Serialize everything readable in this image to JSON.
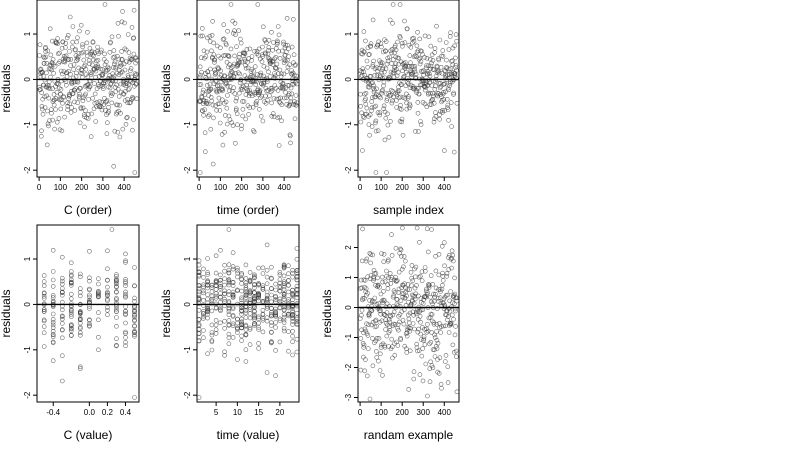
{
  "figure": {
    "panel_count": 6
  },
  "chart_data": [
    {
      "type": "scatter",
      "xlabel": "C (order)",
      "ylabel": "residuals",
      "xlim": [
        -10,
        470
      ],
      "ylim": [
        -2.15,
        1.75
      ],
      "xticks": [
        0,
        100,
        200,
        300,
        400
      ],
      "yticks": [
        -2,
        -1,
        0,
        1
      ],
      "hline": 0,
      "grid": false,
      "n_points": 460,
      "x": "1..460 (observation order)",
      "notable_points": [
        {
          "x": 10,
          "y": -1.25
        },
        {
          "x": 450,
          "y": -2.05
        },
        {
          "x": 310,
          "y": 1.65
        }
      ]
    },
    {
      "type": "scatter",
      "xlabel": "time (order)",
      "ylabel": "residuals",
      "xlim": [
        -10,
        470
      ],
      "ylim": [
        -2.15,
        1.75
      ],
      "xticks": [
        0,
        100,
        200,
        300,
        400
      ],
      "yticks": [
        -2,
        -1,
        0,
        1
      ],
      "hline": 0,
      "grid": false,
      "n_points": 460,
      "notable_points": [
        {
          "x": 5,
          "y": -2.05
        },
        {
          "x": 150,
          "y": 1.65
        }
      ]
    },
    {
      "type": "scatter",
      "xlabel": "sample index",
      "ylabel": "residuals",
      "xlim": [
        -10,
        470
      ],
      "ylim": [
        -2.15,
        1.75
      ],
      "xticks": [
        0,
        100,
        200,
        300,
        400
      ],
      "yticks": [
        -2,
        -1,
        0,
        1
      ],
      "hline": 0,
      "grid": false,
      "n_points": 460,
      "notable_points": [
        {
          "x": 75,
          "y": -2.05
        },
        {
          "x": 190,
          "y": 1.65
        }
      ]
    },
    {
      "type": "scatter",
      "xlabel": "C (value)",
      "ylabel": "residuals",
      "xlim": [
        -0.58,
        0.55
      ],
      "ylim": [
        -2.15,
        1.75
      ],
      "xticks": [
        -0.4,
        0.0,
        0.2,
        0.4
      ],
      "xtick_labels": [
        "-0.4",
        "0.0",
        "0.2",
        "0.4"
      ],
      "yticks": [
        -2,
        -1,
        0,
        1
      ],
      "hline": 0,
      "grid": false,
      "x_values": [
        -0.5,
        -0.4,
        -0.3,
        -0.2,
        -0.1,
        0.0,
        0.1,
        0.2,
        0.3,
        0.4,
        0.5
      ],
      "notable_points": [
        {
          "x": 0.5,
          "y": -2.05
        },
        {
          "x": 0.25,
          "y": 1.65
        }
      ]
    },
    {
      "type": "scatter",
      "xlabel": "time (value)",
      "ylabel": "residuals",
      "xlim": [
        0.5,
        24.5
      ],
      "ylim": [
        -2.15,
        1.75
      ],
      "xticks": [
        5,
        10,
        15,
        20
      ],
      "yticks": [
        -2,
        -1,
        0,
        1
      ],
      "hline": 0,
      "grid": false,
      "x_values": [
        1,
        2,
        3,
        4,
        5,
        6,
        7,
        8,
        9,
        10,
        11,
        12,
        13,
        14,
        15,
        16,
        17,
        18,
        19,
        20,
        21,
        22,
        23,
        24
      ],
      "notable_points": [
        {
          "x": 1,
          "y": -2.05
        },
        {
          "x": 8,
          "y": 1.65
        }
      ]
    },
    {
      "type": "scatter",
      "xlabel": "randam example",
      "ylabel": "residuals",
      "xlim": [
        -10,
        470
      ],
      "ylim": [
        -3.15,
        2.75
      ],
      "xticks": [
        0,
        100,
        200,
        300,
        400
      ],
      "yticks": [
        -3,
        -2,
        -1,
        0,
        1,
        2
      ],
      "hline": 0,
      "grid": false,
      "n_points": 460,
      "notable_points": [
        {
          "x": 320,
          "y": -2.95
        },
        {
          "x": 340,
          "y": 2.6
        }
      ]
    }
  ]
}
